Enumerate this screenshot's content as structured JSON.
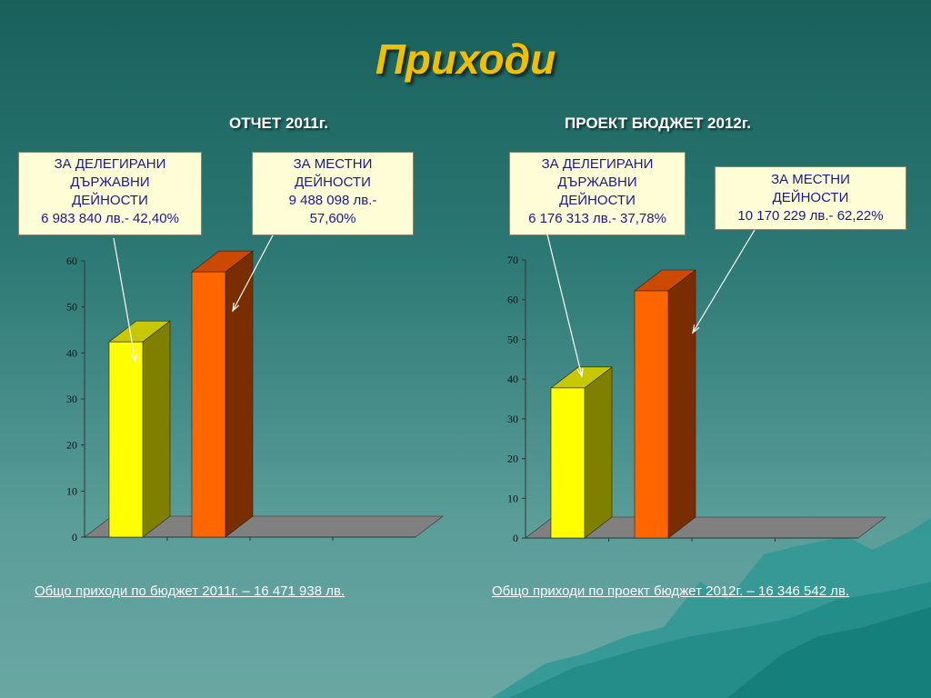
{
  "slide": {
    "title": "Приходи",
    "left_heading": "ОТЧЕТ 2011г.",
    "right_heading": "ПРОЕКТ БЮДЖЕТ  2012г.",
    "left_callouts": {
      "delegated": [
        "ЗА ДЕЛЕГИРАНИ",
        "ДЪРЖАВНИ",
        "ДЕЙНОСТИ",
        "6 983 840 лв.- 42,40%"
      ],
      "local": [
        "ЗА МЕСТНИ",
        "ДЕЙНОСТИ",
        "9 488 098 лв.-",
        "57,60%"
      ]
    },
    "right_callouts": {
      "delegated": [
        "ЗА ДЕЛЕГИРАНИ",
        "ДЪРЖАВНИ",
        "ДЕЙНОСТИ",
        "6 176 313 лв.- 37,78%"
      ],
      "local": [
        "ЗА МЕСТНИ",
        "ДЕЙНОСТИ",
        "10 170 229 лв.- 62,22%"
      ]
    },
    "left_total": "Общо приходи по бюджет 2011г. – 16 471 938 лв. ",
    "right_total": "Общо приходи по проект бюджет 2012г. – 16 346 542 лв."
  },
  "colors": {
    "title": "#f0c000",
    "delegated_front": "#ffff00",
    "delegated_side": "#808000",
    "delegated_top": "#c8c800",
    "local_front": "#ff6600",
    "local_side": "#7a2e00",
    "local_top": "#cc4a00",
    "floor": "#808080"
  },
  "chart_data": [
    {
      "type": "bar",
      "categories": [
        "ЗА ДЕЛЕГИРАНИ ДЪРЖАВНИ ДЕЙНОСТИ",
        "ЗА МЕСТНИ ДЕЙНОСТИ"
      ],
      "values": [
        42.4,
        57.6
      ],
      "ylim": [
        0,
        60
      ],
      "yticks": [
        "0",
        "10",
        "20",
        "30",
        "40",
        "50",
        "60"
      ],
      "grid": false
    },
    {
      "type": "bar",
      "categories": [
        "ЗА ДЕЛЕГИРАНИ ДЪРЖАВНИ ДЕЙНОСТИ",
        "ЗА МЕСТНИ ДЕЙНОСТИ"
      ],
      "values": [
        37.78,
        62.22
      ],
      "ylim": [
        0,
        70
      ],
      "yticks": [
        "0",
        "10",
        "20",
        "30",
        "40",
        "50",
        "60",
        "70"
      ],
      "grid": false
    }
  ]
}
